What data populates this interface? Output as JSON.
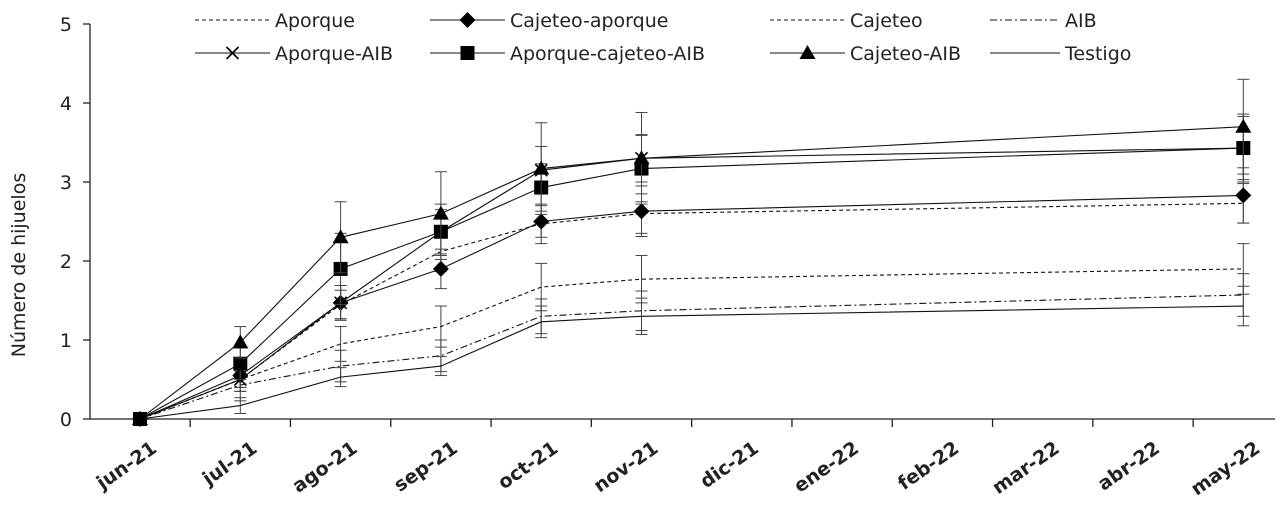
{
  "chart_data": {
    "type": "line",
    "title": "",
    "xlabel": "",
    "ylabel": "Número de hijuelos",
    "ylim": [
      0,
      5
    ],
    "yticks": [
      "0",
      "1",
      "2",
      "3",
      "4",
      "5"
    ],
    "categories": [
      "jun-21",
      "jul-21",
      "ago-21",
      "sep-21",
      "oct-21",
      "nov-21",
      "dic-21",
      "ene-22",
      "feb-22",
      "mar-22",
      "abr-22",
      "may-22"
    ],
    "legend_position": "top",
    "grid": false,
    "series": [
      {
        "name": "Aporque",
        "marker": "none",
        "dash": "dashed",
        "points": [
          [
            0,
            0
          ],
          [
            1,
            0.5
          ],
          [
            2,
            1.45
          ],
          [
            3,
            2.12
          ],
          [
            4,
            2.47
          ],
          [
            5,
            2.6
          ],
          [
            11,
            2.73
          ]
        ],
        "errors": [
          0,
          0.1,
          0.18,
          0.25,
          0.25,
          0.25,
          0.25
        ]
      },
      {
        "name": "Cajeteo-aporque",
        "marker": "diamond",
        "dash": "solid",
        "points": [
          [
            0,
            0
          ],
          [
            1,
            0.55
          ],
          [
            2,
            1.47
          ],
          [
            3,
            1.9
          ],
          [
            4,
            2.5
          ],
          [
            5,
            2.63
          ],
          [
            11,
            2.83
          ]
        ],
        "errors": [
          0,
          0.15,
          0.22,
          0.25,
          0.2,
          0.32,
          0.35
        ]
      },
      {
        "name": "Cajeteo",
        "marker": "none",
        "dash": "dashed",
        "points": [
          [
            0,
            0
          ],
          [
            1,
            0.5
          ],
          [
            2,
            0.95
          ],
          [
            3,
            1.17
          ],
          [
            4,
            1.67
          ],
          [
            5,
            1.77
          ],
          [
            11,
            1.9
          ]
        ],
        "errors": [
          0,
          0.15,
          0.22,
          0.26,
          0.3,
          0.3,
          0.32
        ]
      },
      {
        "name": "AIB",
        "marker": "none",
        "dash": "dashdot",
        "points": [
          [
            0,
            0
          ],
          [
            1,
            0.43
          ],
          [
            2,
            0.67
          ],
          [
            3,
            0.8
          ],
          [
            4,
            1.3
          ],
          [
            5,
            1.37
          ],
          [
            11,
            1.57
          ]
        ],
        "errors": [
          0,
          0.2,
          0.2,
          0.2,
          0.22,
          0.25,
          0.27
        ]
      },
      {
        "name": "Aporque-AIB",
        "marker": "x",
        "dash": "solid",
        "points": [
          [
            0,
            0
          ],
          [
            1,
            0.5
          ],
          [
            2,
            1.47
          ],
          [
            3,
            2.37
          ],
          [
            4,
            3.15
          ],
          [
            5,
            3.3
          ],
          [
            11,
            3.43
          ]
        ],
        "errors": [
          0,
          0.15,
          0.22,
          0.35,
          0.3,
          0.3,
          0.4
        ]
      },
      {
        "name": "Aporque-cajeteo-AIB",
        "marker": "square",
        "dash": "solid",
        "points": [
          [
            0,
            0
          ],
          [
            1,
            0.7
          ],
          [
            2,
            1.9
          ],
          [
            3,
            2.37
          ],
          [
            4,
            2.93
          ],
          [
            5,
            3.17
          ],
          [
            11,
            3.43
          ]
        ],
        "errors": [
          0,
          0.2,
          0.45,
          0.28,
          0.3,
          0.42,
          0.43
        ]
      },
      {
        "name": "Cajeteo-AIB",
        "marker": "triangle",
        "dash": "solid",
        "points": [
          [
            0,
            0
          ],
          [
            1,
            0.97
          ],
          [
            2,
            2.3
          ],
          [
            3,
            2.6
          ],
          [
            4,
            3.17
          ],
          [
            5,
            3.3
          ],
          [
            11,
            3.7
          ]
        ],
        "errors": [
          0,
          0.2,
          0.45,
          0.53,
          0.58,
          0.58,
          0.6
        ]
      },
      {
        "name": "Testigo",
        "marker": "none",
        "dash": "solid",
        "points": [
          [
            0,
            0
          ],
          [
            1,
            0.17
          ],
          [
            2,
            0.53
          ],
          [
            3,
            0.67
          ],
          [
            4,
            1.23
          ],
          [
            5,
            1.3
          ],
          [
            11,
            1.43
          ]
        ],
        "errors": [
          0,
          0.1,
          0.12,
          0.12,
          0.2,
          0.23,
          0.25
        ]
      }
    ]
  }
}
